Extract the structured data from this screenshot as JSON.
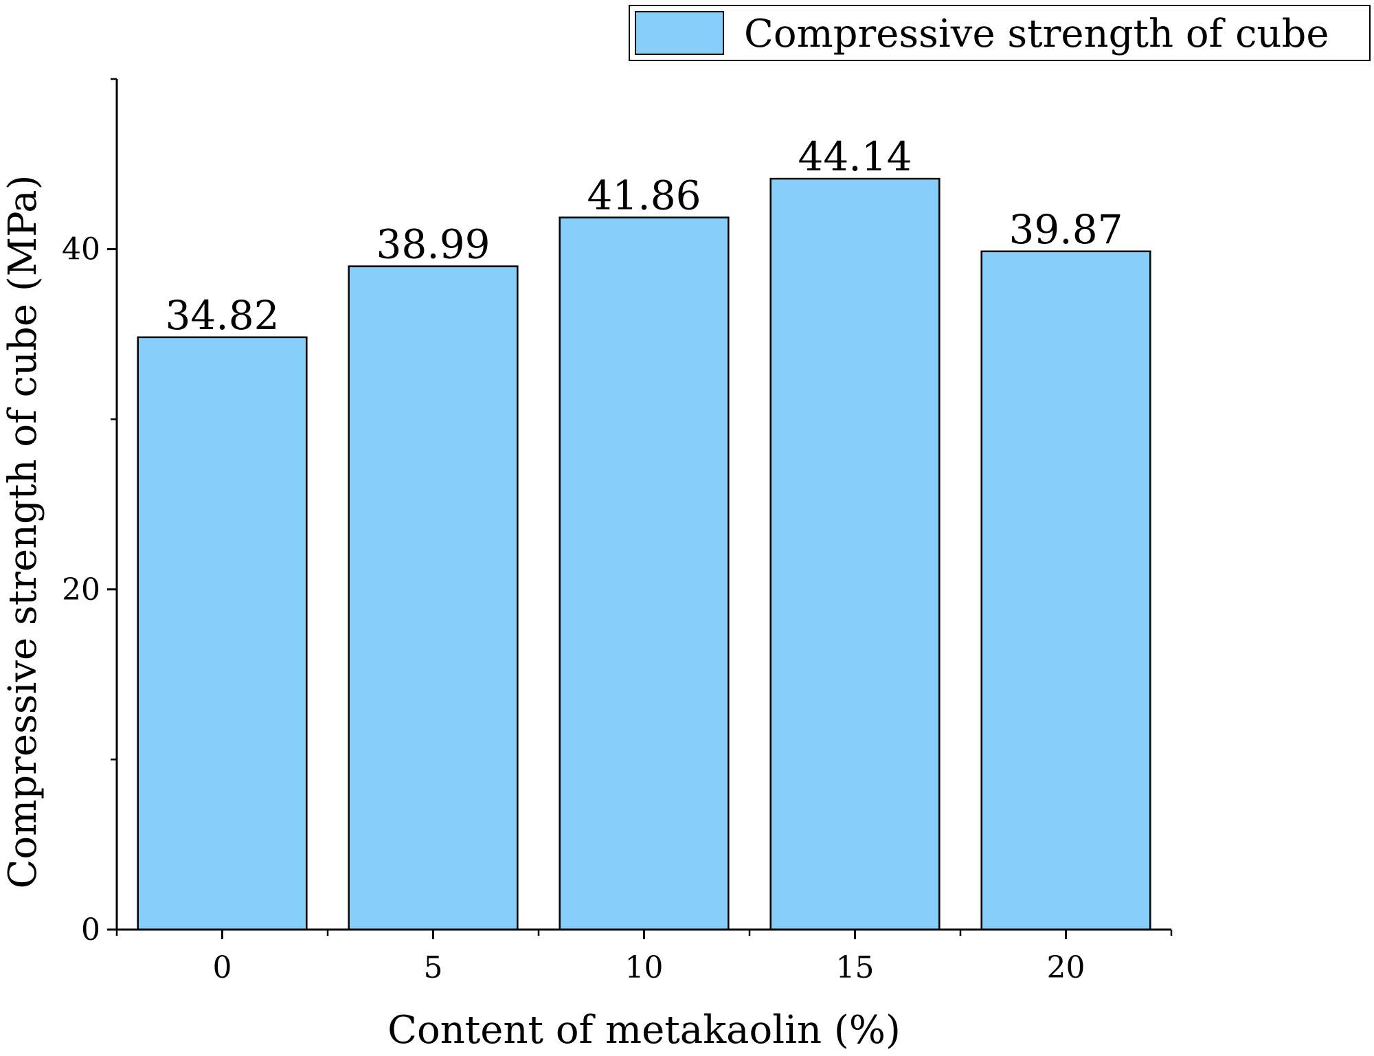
{
  "chart_data": {
    "type": "bar",
    "categories": [
      "0",
      "5",
      "10",
      "15",
      "20"
    ],
    "series": [
      {
        "name": "Compressive strength of cube",
        "values": [
          34.82,
          38.99,
          41.86,
          44.14,
          39.87
        ],
        "color": "#87CEFA"
      }
    ],
    "data_labels": [
      "34.82",
      "38.99",
      "41.86",
      "44.14",
      "39.87"
    ],
    "title": "",
    "xlabel": "Content of metakaolin (%)",
    "ylabel": "Compressive strength of cube (MPa)",
    "ylim": [
      0,
      50
    ],
    "yticks": [
      0,
      20,
      40
    ],
    "yticks_minor": [
      10,
      30
    ],
    "grid": false,
    "legend": {
      "position": "top-right",
      "entries": [
        "Compressive strength of cube"
      ]
    },
    "bar_color": "#87CEFA",
    "bar_edge_color": "#000000"
  }
}
